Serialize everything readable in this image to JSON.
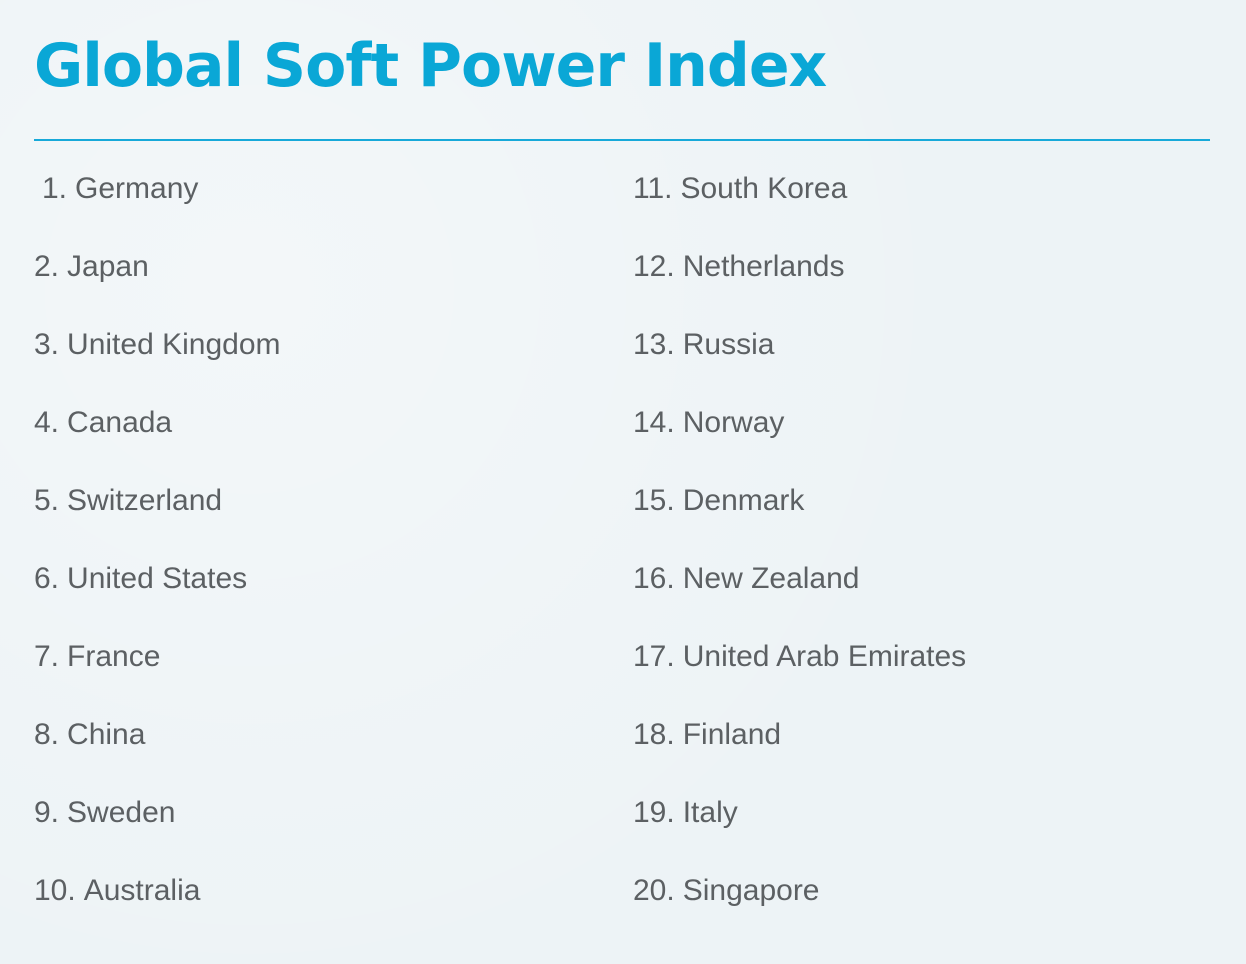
{
  "title": "Global Soft Power Index",
  "accent_color": "#0aa7d6",
  "rankings": [
    {
      "rank": "1.",
      "country": "Germany"
    },
    {
      "rank": "2.",
      "country": "Japan"
    },
    {
      "rank": "3.",
      "country": "United Kingdom"
    },
    {
      "rank": "4.",
      "country": "Canada"
    },
    {
      "rank": "5.",
      "country": "Switzerland"
    },
    {
      "rank": "6.",
      "country": "United States"
    },
    {
      "rank": "7.",
      "country": "France"
    },
    {
      "rank": "8.",
      "country": "China"
    },
    {
      "rank": "9.",
      "country": "Sweden"
    },
    {
      "rank": "10.",
      "country": "Australia"
    },
    {
      "rank": "11.",
      "country": "South Korea"
    },
    {
      "rank": "12.",
      "country": "Netherlands"
    },
    {
      "rank": "13.",
      "country": "Russia"
    },
    {
      "rank": "14.",
      "country": "Norway"
    },
    {
      "rank": "15.",
      "country": "Denmark"
    },
    {
      "rank": "16.",
      "country": "New Zealand"
    },
    {
      "rank": "17.",
      "country": "United Arab Emirates"
    },
    {
      "rank": "18.",
      "country": "Finland"
    },
    {
      "rank": "19.",
      "country": "Italy"
    },
    {
      "rank": "20.",
      "country": "Singapore"
    }
  ]
}
